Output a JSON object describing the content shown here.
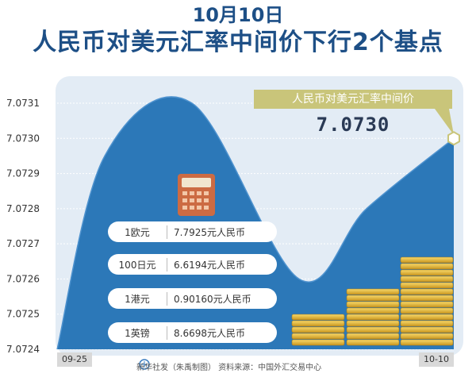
{
  "header": {
    "date": "10月10日",
    "title": "人民币对美元汇率中间价下行2个基点"
  },
  "callout": {
    "label": "人民币对美元汇率中间价",
    "value": "7.0730"
  },
  "exchange_rates": [
    {
      "currency": "1欧元",
      "value": "7.7925元人民币"
    },
    {
      "currency": "100日元",
      "value": "6.6194元人民币"
    },
    {
      "currency": "1港元",
      "value": "0.90160元人民币"
    },
    {
      "currency": "1英镑",
      "value": "8.6698元人民币"
    }
  ],
  "footer": {
    "source": "新华社发（朱禹制图） 资料来源：中国外汇交易中心"
  },
  "colors": {
    "title": "#1d4f86",
    "area": "#2c78b8",
    "background_panel": "#e3ecf5",
    "callout": "#c9c57a"
  },
  "icons": [
    "calculator-icon",
    "coin-stack-icon",
    "xinhua-logo-icon"
  ],
  "chart_data": {
    "type": "area",
    "x": [
      "09-25",
      "10-10"
    ],
    "x_tick_labels": [
      "09-25",
      "10-10"
    ],
    "y_ticks": [
      "7.0724",
      "7.0725",
      "7.0726",
      "7.0727",
      "7.0728",
      "7.0729",
      "7.0730",
      "7.0731"
    ],
    "ylim": [
      7.0724,
      7.0731
    ],
    "grid": true,
    "curve": [
      {
        "t": 0.0,
        "y": 7.0724
      },
      {
        "t": 0.12,
        "y": 7.07295
      },
      {
        "t": 0.34,
        "y": 7.0731
      },
      {
        "t": 0.61,
        "y": 7.0726
      },
      {
        "t": 0.78,
        "y": 7.0728
      },
      {
        "t": 1.0,
        "y": 7.073
      }
    ],
    "end_value": 7.073
  }
}
